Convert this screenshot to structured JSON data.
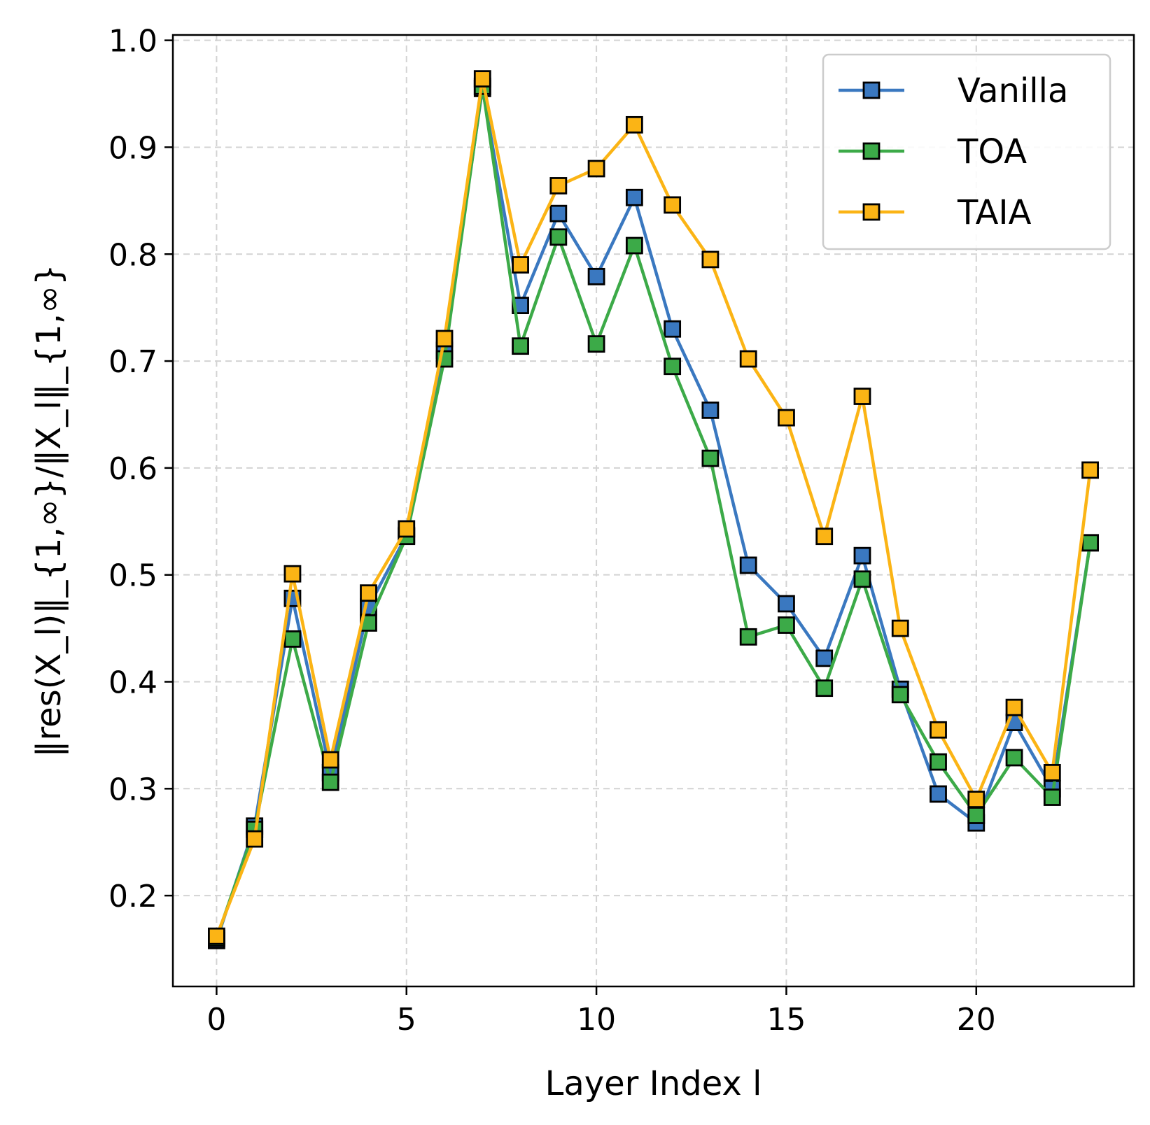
{
  "chart_data": {
    "type": "line",
    "title": "",
    "xlabel": "Layer Index l",
    "ylabel": "‖res(X_l)‖_{1,∞}/‖X_l‖_{1,∞}",
    "xlim": [
      -1.15,
      24.15
    ],
    "ylim": [
      0.115,
      1.005
    ],
    "xticks": [
      0,
      5,
      10,
      15,
      20
    ],
    "xtick_labels": [
      "0",
      "5",
      "10",
      "15",
      "20"
    ],
    "yticks": [
      0.2,
      0.3,
      0.4,
      0.5,
      0.6,
      0.7,
      0.8,
      0.9,
      1.0
    ],
    "ytick_labels": [
      "0.2",
      "0.3",
      "0.4",
      "0.5",
      "0.6",
      "0.7",
      "0.8",
      "0.9",
      "1.0"
    ],
    "grid": true,
    "legend_position": "top-right",
    "x": [
      0,
      1,
      2,
      3,
      4,
      5,
      6,
      7,
      8,
      9,
      10,
      11,
      12,
      13,
      14,
      15,
      16,
      17,
      18,
      19,
      20,
      21,
      22,
      23
    ],
    "series": [
      {
        "name": "Vanilla",
        "color": "#3a78c0",
        "values": [
          0.158,
          0.265,
          0.478,
          0.315,
          0.47,
          0.537,
          0.71,
          0.955,
          0.752,
          0.838,
          0.779,
          0.853,
          0.73,
          0.654,
          0.509,
          0.473,
          0.422,
          0.518,
          0.393,
          0.295,
          0.268,
          0.362,
          0.3,
          0.53
        ]
      },
      {
        "name": "TOA",
        "color": "#3caa48",
        "values": [
          0.16,
          0.262,
          0.44,
          0.306,
          0.455,
          0.536,
          0.702,
          0.957,
          0.714,
          0.816,
          0.716,
          0.808,
          0.695,
          0.609,
          0.442,
          0.453,
          0.394,
          0.496,
          0.388,
          0.325,
          0.275,
          0.329,
          0.292,
          0.53
        ]
      },
      {
        "name": "TAIA",
        "color": "#fbb415",
        "values": [
          0.162,
          0.253,
          0.501,
          0.327,
          0.483,
          0.543,
          0.721,
          0.964,
          0.79,
          0.864,
          0.88,
          0.921,
          0.846,
          0.795,
          0.702,
          0.647,
          0.536,
          0.667,
          0.45,
          0.355,
          0.29,
          0.376,
          0.315,
          0.598
        ]
      }
    ]
  }
}
